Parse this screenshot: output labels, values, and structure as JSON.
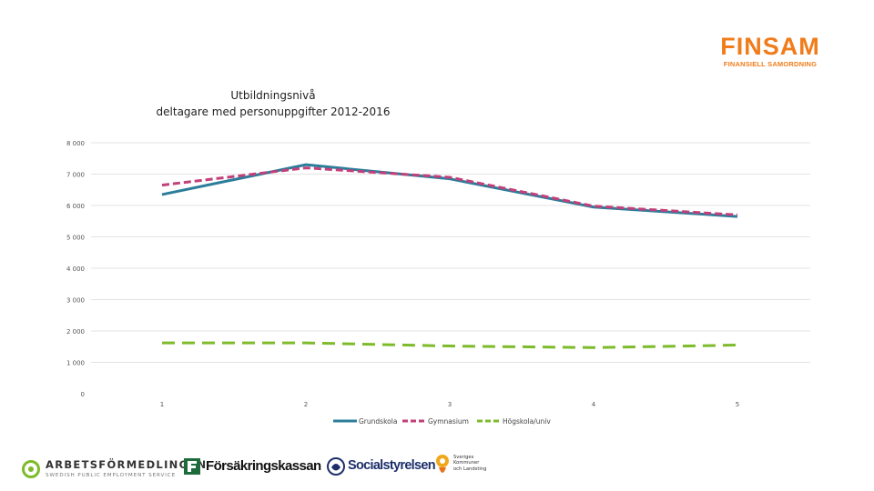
{
  "logo": {
    "name": "FINSAM",
    "tagline": "FINANSIELL SAMORDNING",
    "color": "#f07c1a"
  },
  "chart_data": {
    "type": "line",
    "title": [
      "Utbildningsnivå",
      "deltagare med personuppgifter 2012-2016"
    ],
    "xlabel": "",
    "ylabel": "",
    "categories": [
      "1",
      "2",
      "3",
      "4",
      "5"
    ],
    "ylim": [
      0,
      8000
    ],
    "yticks": [
      0,
      1000,
      2000,
      3000,
      4000,
      5000,
      6000,
      7000,
      8000
    ],
    "ytick_labels": [
      "0",
      "1 000",
      "2 000",
      "3 000",
      "4 000",
      "5 000",
      "6 000",
      "7 000",
      "8 000"
    ],
    "grid": true,
    "legend_position": "bottom",
    "series": [
      {
        "name": "Grundskola",
        "values": [
          6350,
          7300,
          6850,
          5950,
          5650
        ],
        "color": "#2b7d9a",
        "style": "solid"
      },
      {
        "name": "Gymnasium",
        "values": [
          6650,
          7200,
          6900,
          5980,
          5700
        ],
        "color": "#c2407a",
        "style": "dashed"
      },
      {
        "name": "Högskola/univ",
        "values": [
          1620,
          1620,
          1520,
          1470,
          1550
        ],
        "color": "#7dbb2a",
        "style": "dashed"
      }
    ]
  },
  "footer": {
    "arbetsformedlingen": {
      "name": "ARBETSFÖRMEDLINGEN",
      "subtitle": "SWEDISH PUBLIC EMPLOYMENT SERVICE"
    },
    "forsakringskassan": {
      "name": "Försäkringskassan"
    },
    "socialstyrelsen": {
      "name": "Socialstyrelsen"
    },
    "skl": {
      "lines": [
        "Sveriges",
        "Kommuner",
        "och Landsting"
      ]
    }
  }
}
